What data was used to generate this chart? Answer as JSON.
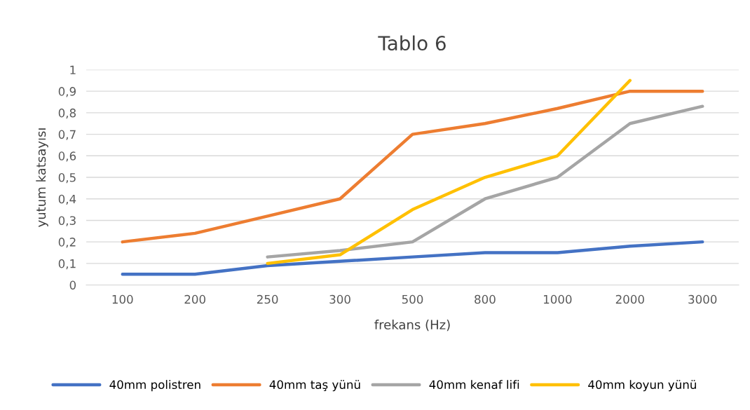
{
  "chart_data": {
    "type": "line",
    "title": "Tablo 6",
    "xlabel": "frekans (Hz)",
    "ylabel": "yutum katsayısı",
    "categories": [
      "100",
      "200",
      "250",
      "300",
      "500",
      "800",
      "1000",
      "2000",
      "3000"
    ],
    "series": [
      {
        "name": "40mm polistren",
        "color": "#4472c4",
        "values": [
          0.05,
          0.05,
          0.09,
          0.11,
          0.13,
          0.15,
          0.15,
          0.18,
          0.2
        ]
      },
      {
        "name": "40mm taş yünü",
        "color": "#ed7d31",
        "values": [
          0.2,
          0.24,
          0.32,
          0.4,
          0.7,
          0.75,
          0.82,
          0.9,
          0.9
        ]
      },
      {
        "name": "40mm kenaf lifi",
        "color": "#a5a5a5",
        "values": [
          null,
          null,
          0.13,
          0.16,
          0.2,
          0.4,
          0.5,
          0.75,
          0.83
        ]
      },
      {
        "name": "40mm koyun yünü",
        "color": "#ffc000",
        "values": [
          null,
          null,
          0.1,
          0.14,
          0.35,
          0.5,
          0.6,
          0.95,
          null
        ]
      }
    ],
    "ylim": [
      0,
      1
    ],
    "yticks": [
      {
        "value": 0,
        "label": "0"
      },
      {
        "value": 0.1,
        "label": "0,1"
      },
      {
        "value": 0.2,
        "label": "0,2"
      },
      {
        "value": 0.3,
        "label": "0,3"
      },
      {
        "value": 0.4,
        "label": "0,4"
      },
      {
        "value": 0.5,
        "label": "0,5"
      },
      {
        "value": 0.6,
        "label": "0,6"
      },
      {
        "value": 0.7,
        "label": "0,7"
      },
      {
        "value": 0.8,
        "label": "0,8"
      },
      {
        "value": 0.9,
        "label": "0,9"
      },
      {
        "value": 1,
        "label": "1"
      }
    ],
    "grid": "y",
    "legend": "bottom",
    "marker": "none",
    "line_style": "solid"
  }
}
